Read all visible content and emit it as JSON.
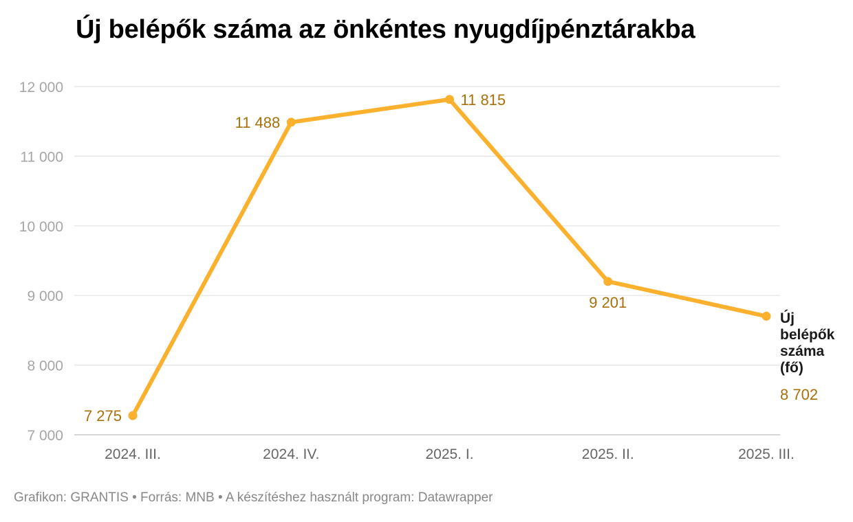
{
  "chart_data": {
    "type": "line",
    "title": "Új belépők száma az önkéntes nyugdíjpénztárakba",
    "categories": [
      "2024. III.",
      "2024. IV.",
      "2025. I.",
      "2025. II.",
      "2025. III."
    ],
    "series": [
      {
        "name": "Új belépők száma (fő)",
        "values": [
          7275,
          11488,
          11815,
          9201,
          8702
        ],
        "labels": [
          "7 275",
          "11 488",
          "11 815",
          "9 201",
          "8 702"
        ],
        "color": "#fbb12e"
      }
    ],
    "name_lines": [
      "Új",
      "belépők",
      "száma",
      "(fő)"
    ],
    "ylim": [
      7000,
      12000
    ],
    "yticks": [
      7000,
      8000,
      9000,
      10000,
      11000,
      12000
    ],
    "ytick_labels": [
      "7 000",
      "8 000",
      "9 000",
      "10 000",
      "11 000",
      "12 000"
    ],
    "grid": true,
    "label_color": "#a8700a",
    "footer": "Grafikon: GRANTIS • Forrás: MNB • A készítéshez használt program: Datawrapper"
  }
}
